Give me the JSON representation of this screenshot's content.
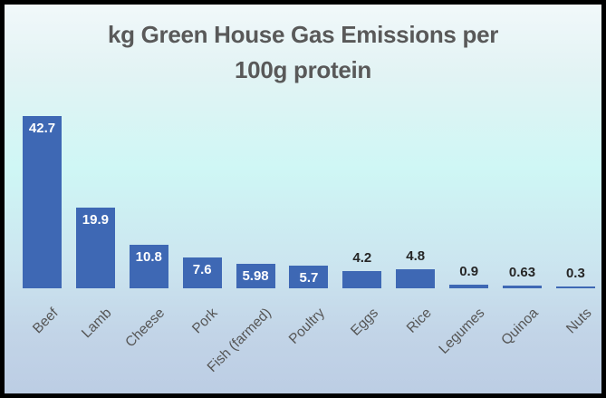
{
  "title": {
    "line1": "kg Green House Gas Emissions per",
    "line2": "100g protein"
  },
  "chart_data": {
    "type": "bar",
    "title": "kg Green House Gas Emissions per 100g protein",
    "categories": [
      "Beef",
      "Lamb",
      "Cheese",
      "Pork",
      "Fish (farmed)",
      "Poultry",
      "Eggs",
      "Rice",
      "Legumes",
      "Quinoa",
      "Nuts"
    ],
    "values": [
      42.7,
      19.9,
      10.8,
      7.6,
      5.98,
      5.7,
      4.2,
      4.8,
      0.9,
      0.63,
      0.3
    ],
    "value_labels": [
      "42.7",
      "19.9",
      "10.8",
      "7.6",
      "5.98",
      "5.7",
      "4.2",
      "4.8",
      "0.9",
      "0.63",
      "0.3"
    ],
    "xlabel": "",
    "ylabel": "",
    "ylim": [
      0,
      45
    ],
    "grid": false,
    "legend": false,
    "data_labels": true
  },
  "colors": {
    "bar": "#3e68b4",
    "value_label_inside": "#ffffff",
    "value_label_outside": "#262626",
    "category_label": "#565656",
    "title": "#595959",
    "border": "#000000",
    "background_top": "#f1f8fa",
    "background_mid": "#cff7f5",
    "background_bottom": "#bccde4"
  }
}
